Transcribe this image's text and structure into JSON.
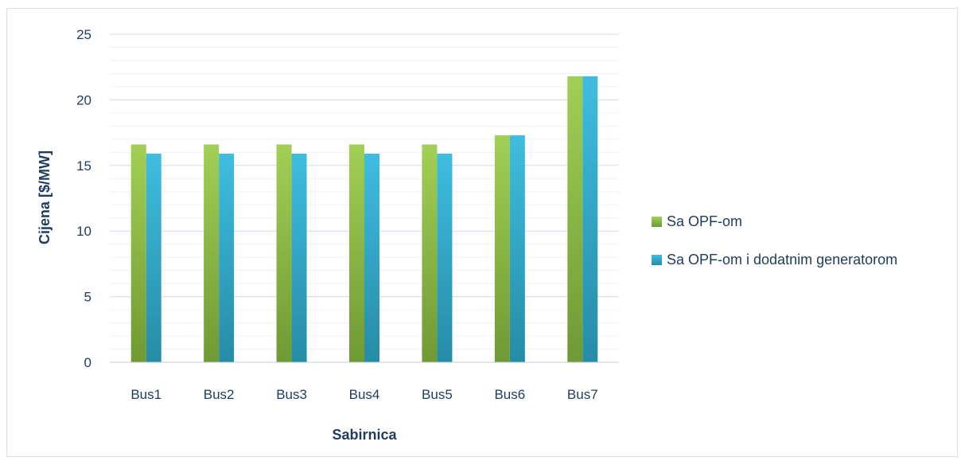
{
  "chart_data": {
    "type": "bar",
    "categories": [
      "Bus1",
      "Bus2",
      "Bus3",
      "Bus4",
      "Bus5",
      "Bus6",
      "Bus7"
    ],
    "series": [
      {
        "name": "Sa OPF-om",
        "values": [
          16.6,
          16.6,
          16.6,
          16.6,
          16.6,
          17.3,
          21.8
        ],
        "color": "#8fc045"
      },
      {
        "name": "Sa OPF-om i dodatnim generatorom",
        "values": [
          15.9,
          15.9,
          15.9,
          15.9,
          15.9,
          17.3,
          21.8
        ],
        "color": "#36aece"
      }
    ],
    "title": "",
    "xlabel": "Sabirnica",
    "ylabel": "Cijena [$/MW]",
    "ylim": [
      0,
      25
    ],
    "yticks": [
      "0",
      "5",
      "10",
      "15",
      "20",
      "25"
    ],
    "grid": true,
    "legend": "right"
  }
}
